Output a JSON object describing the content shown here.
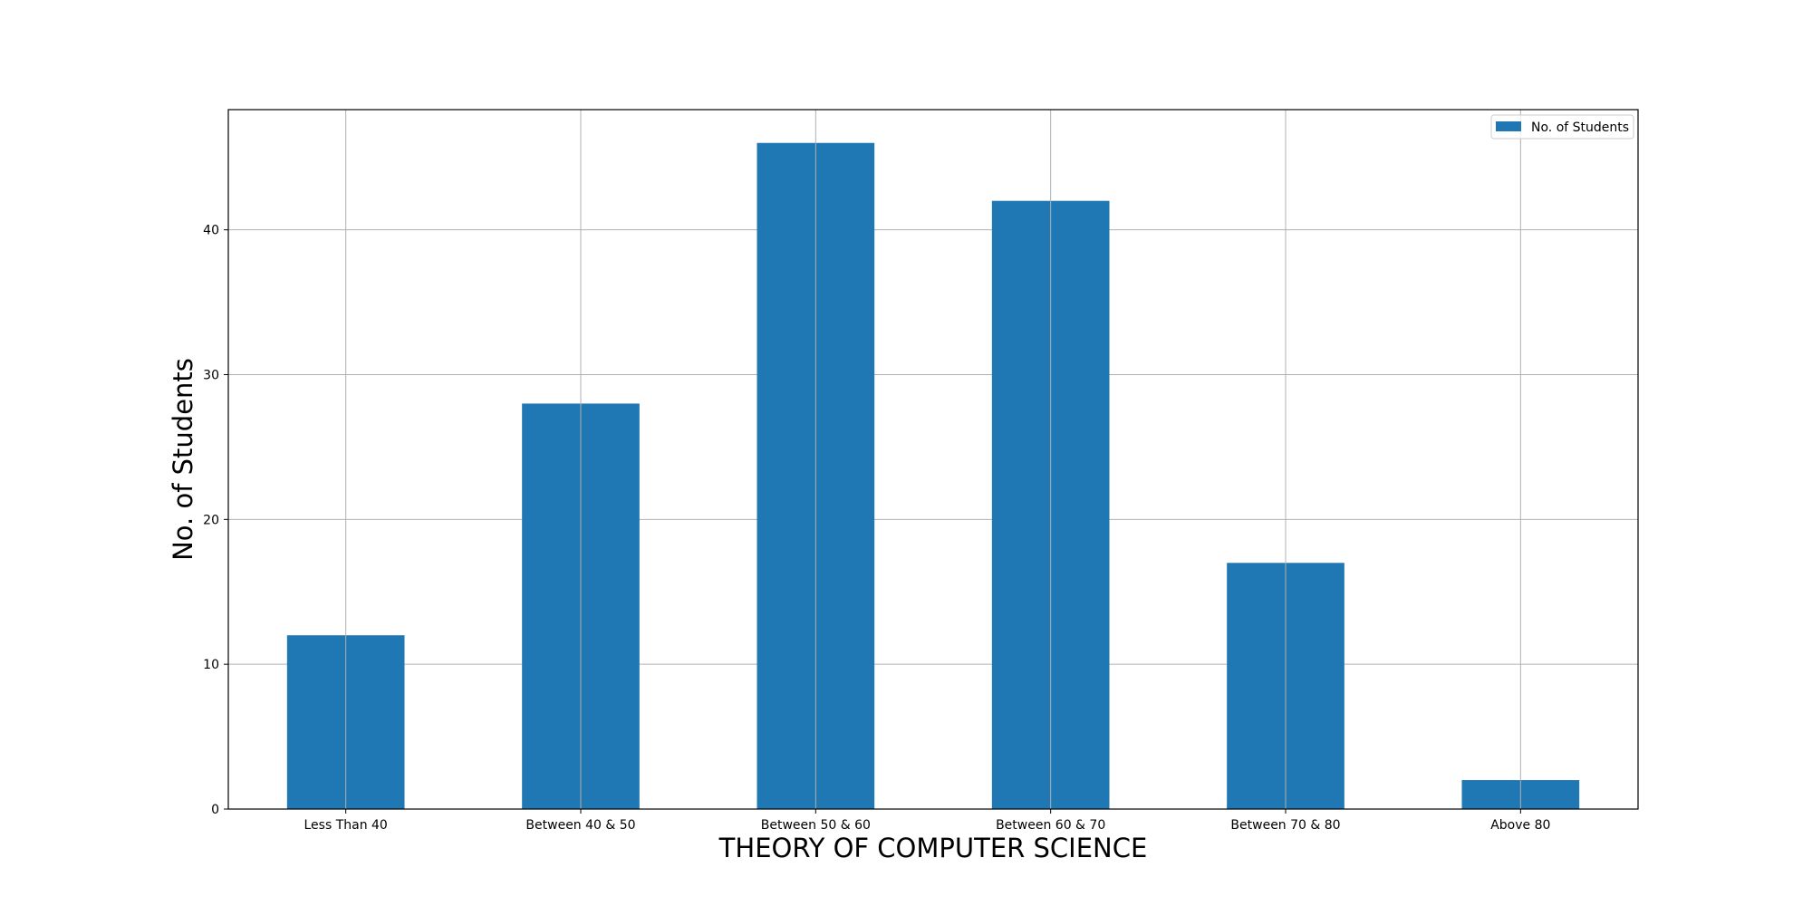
{
  "chart_data": {
    "type": "bar",
    "categories": [
      "Less Than 40",
      "Between 40 & 50",
      "Between 50 & 60",
      "Between 60 & 70",
      "Between 70 & 80",
      "Above 80"
    ],
    "series": [
      {
        "name": "No. of Students",
        "values": [
          12,
          28,
          46,
          42,
          17,
          2
        ],
        "color": "#1f77b4"
      }
    ],
    "title": "",
    "xlabel": "THEORY OF COMPUTER SCIENCE",
    "ylabel": "No. of Students",
    "ylim": [
      0,
      48.3
    ],
    "yticks": [
      0,
      10,
      20,
      30,
      40
    ],
    "grid": true,
    "legend_position": "top-right"
  }
}
